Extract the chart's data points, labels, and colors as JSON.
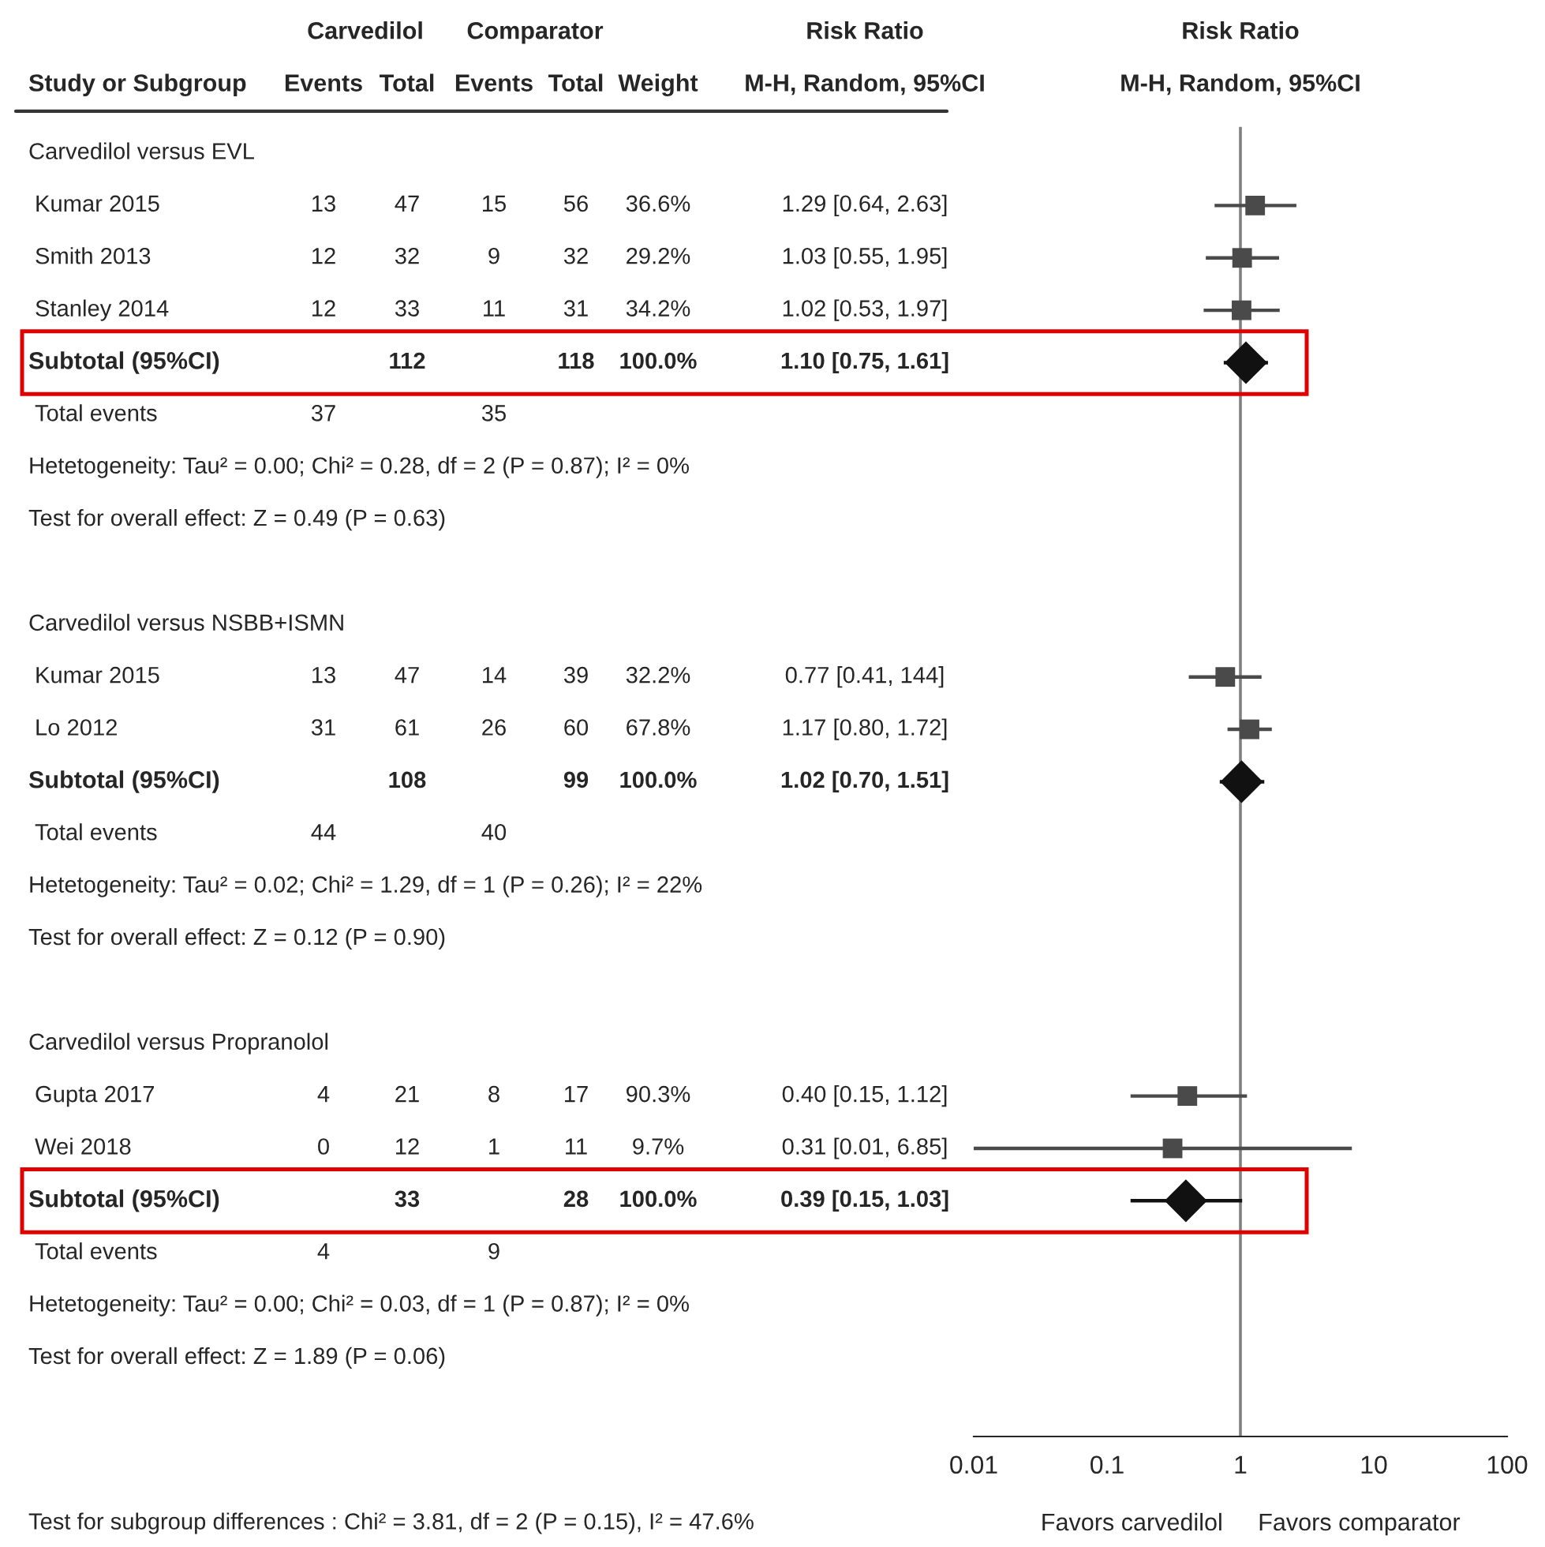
{
  "chart_data": [
    {
      "type": "other",
      "annotations": [
        "Carvedilol",
        "Comparator",
        "Risk Ratio",
        "Test for subgroup differences : Chi² = 3.81, df = 2 (P = 0.15), I² = 47.6%"
      ],
      "categories": [
        "Study or Subgroup",
        "Events",
        "Total",
        "Events",
        "Total",
        "Weight",
        "M-H, Random, 95%CI"
      ],
      "y_categories": [
        "Carvedilol versus EVL",
        "Kumar 2015",
        "Smith 2013",
        "Stanley 2014",
        "Subtotal (95%CI)",
        "Total events",
        "Hetetogeneity: Tau² = 0.00; Chi² = 0.28, df = 2 (P = 0.87); I² = 0%",
        "Test for overall effect: Z = 0.49 (P = 0.63)",
        null,
        "Carvedilol versus NSBB+ISMN",
        "Kumar 2015",
        "Lo 2012",
        "Subtotal (95%CI)",
        "Total events",
        "Hetetogeneity: Tau² = 0.02; Chi² = 1.29, df = 1 (P = 0.26); I² = 22%",
        "Test for overall effect: Z = 0.12 (P = 0.90)",
        null,
        "Carvedilol versus Propranolol",
        "Gupta 2017",
        "Wei 2018",
        "Subtotal (95%CI)",
        "Total events",
        "Hetetogeneity: Tau² = 0.00; Chi² = 0.03, df = 1 (P = 0.87); I² = 0%",
        "Test for overall effect: Z = 1.89 (P = 0.06)"
      ],
      "cell_labels": [
        [
          null,
          null,
          null,
          null,
          null,
          null
        ],
        [
          "13",
          "47",
          "15",
          "56",
          "36.6%",
          "1.29 [0.64, 2.63]"
        ],
        [
          "12",
          "32",
          "9",
          "32",
          "29.2%",
          "1.03 [0.55, 1.95]"
        ],
        [
          "12",
          "33",
          "11",
          "31",
          "34.2%",
          "1.02 [0.53, 1.97]"
        ],
        [
          null,
          "112",
          null,
          "118",
          "100.0%",
          "1.10 [0.75, 1.61]"
        ],
        [
          "37",
          null,
          "35",
          null,
          null,
          null
        ],
        [
          null,
          null,
          null,
          null,
          null,
          null
        ],
        [
          null,
          null,
          null,
          null,
          null,
          null
        ],
        [
          null,
          null,
          null,
          null,
          null,
          null
        ],
        [
          null,
          null,
          null,
          null,
          null,
          null
        ],
        [
          "13",
          "47",
          "14",
          "39",
          "32.2%",
          "0.77 [0.41, 144]"
        ],
        [
          "31",
          "61",
          "26",
          "60",
          "67.8%",
          "1.17 [0.80, 1.72]"
        ],
        [
          null,
          "108",
          null,
          "99",
          "100.0%",
          "1.02 [0.70, 1.51]"
        ],
        [
          "44",
          null,
          "40",
          null,
          null,
          null
        ],
        [
          null,
          null,
          null,
          null,
          null,
          null
        ],
        [
          null,
          null,
          null,
          null,
          null,
          null
        ],
        [
          null,
          null,
          null,
          null,
          null,
          null
        ],
        [
          null,
          null,
          null,
          null,
          null,
          null
        ],
        [
          "4",
          "21",
          "8",
          "17",
          "90.3%",
          "0.40 [0.15, 1.12]"
        ],
        [
          "0",
          "12",
          "1",
          "11",
          "9.7%",
          "0.31 [0.01, 6.85]"
        ],
        [
          null,
          "33",
          null,
          "28",
          "100.0%",
          "0.39 [0.15, 1.03]"
        ],
        [
          "4",
          null,
          "9",
          null,
          null,
          null
        ],
        [
          null,
          null,
          null,
          null,
          null,
          null
        ],
        [
          null,
          null,
          null,
          null,
          null,
          null
        ]
      ]
    },
    {
      "type": "scatter",
      "orientation": "horizontal",
      "title": "Risk Ratio",
      "subtitle": "M-H, Random, 95%CI",
      "categories": [
        null,
        null,
        null,
        null,
        null,
        null,
        null,
        null,
        null,
        null,
        null,
        null,
        null,
        null,
        null,
        null,
        null,
        null,
        null,
        null,
        null,
        null,
        null,
        null,
        null
      ],
      "log": "x",
      "xlim": [
        0.01,
        100
      ],
      "xticks": [
        0.01,
        0.1,
        1,
        10,
        100
      ],
      "grid": false,
      "legend": false,
      "ref_lines": [
        {
          "axis": "x",
          "value": 1,
          "color": "#808080"
        }
      ],
      "annotations": [
        "Favors carvedilol",
        "Favors comparator"
      ],
      "series": [
        {
          "marker": "square",
          "color": "#4a4a4a",
          "values": [
            null,
            1.29,
            1.03,
            1.02,
            null,
            null,
            null,
            null,
            null,
            null,
            0.77,
            1.17,
            null,
            null,
            null,
            null,
            null,
            null,
            0.4,
            0.31,
            null,
            null,
            null,
            null,
            null
          ],
          "errors": [
            null,
            [
              0.64,
              2.63
            ],
            [
              0.55,
              1.95
            ],
            [
              0.53,
              1.97
            ],
            null,
            null,
            null,
            null,
            null,
            null,
            [
              0.41,
              1.44
            ],
            [
              0.8,
              1.72
            ],
            null,
            null,
            null,
            null,
            null,
            null,
            [
              0.15,
              1.12
            ],
            [
              0.01,
              6.85
            ],
            null,
            null,
            null,
            null,
            null
          ]
        },
        {
          "marker": "diamond",
          "color": "#111111",
          "values": [
            null,
            null,
            null,
            null,
            1.1,
            null,
            null,
            null,
            null,
            null,
            null,
            null,
            1.02,
            null,
            null,
            null,
            null,
            null,
            null,
            null,
            0.39,
            null,
            null,
            null,
            null
          ],
          "errors": [
            null,
            null,
            null,
            null,
            [
              0.75,
              1.61
            ],
            null,
            null,
            null,
            null,
            null,
            null,
            null,
            [
              0.7,
              1.51
            ],
            null,
            null,
            null,
            null,
            null,
            null,
            null,
            [
              0.15,
              1.03
            ],
            null,
            null,
            null,
            null
          ]
        }
      ]
    }
  ]
}
